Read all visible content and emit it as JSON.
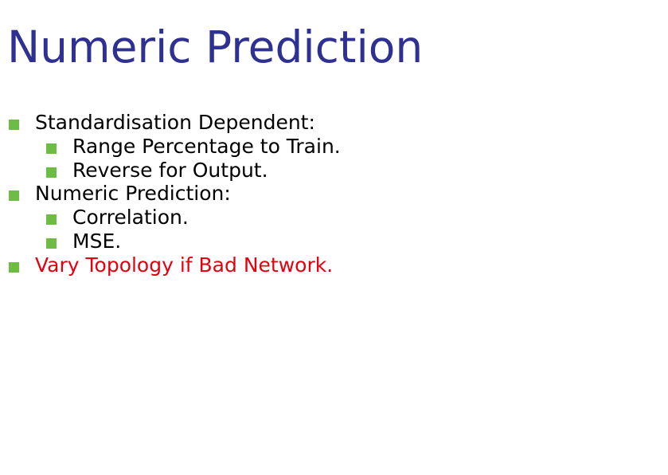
{
  "slide": {
    "title": "Numeric Prediction",
    "colors": {
      "title": "#2e3192",
      "text": "#000000",
      "highlight": "#e3000f",
      "bullet": "#6dbd45"
    },
    "bullets": [
      {
        "level": 1,
        "text": "Standardisation Dependent:"
      },
      {
        "level": 2,
        "text": "Range Percentage to Train."
      },
      {
        "level": 2,
        "text": "Reverse for Output."
      },
      {
        "level": 1,
        "text": "Numeric Prediction:"
      },
      {
        "level": 2,
        "text": "Correlation."
      },
      {
        "level": 2,
        "text": "MSE."
      },
      {
        "level": 1,
        "text": "Vary Topology if Bad Network.",
        "highlight": true
      }
    ]
  }
}
